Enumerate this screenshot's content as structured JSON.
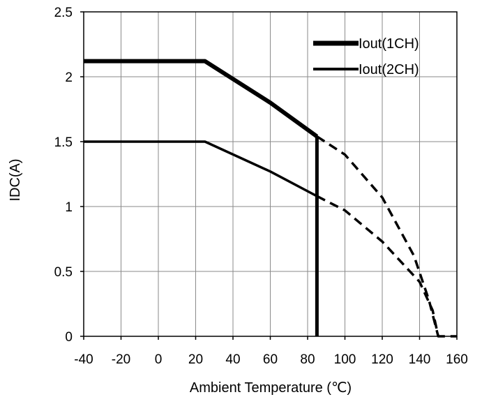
{
  "chart_data": {
    "type": "line",
    "title": "",
    "xlabel": "Ambient Temperature (℃)",
    "ylabel": "IDC(A)",
    "xlim": [
      -40,
      160
    ],
    "ylim": [
      0,
      2.5
    ],
    "x_ticks": [
      -40,
      -20,
      0,
      20,
      40,
      60,
      80,
      100,
      120,
      140,
      160
    ],
    "y_ticks": [
      0,
      0.5,
      1,
      1.5,
      2,
      2.5
    ],
    "x_tick_labels": [
      "-40",
      "-20",
      "0",
      "20",
      "40",
      "60",
      "80",
      "100",
      "120",
      "140",
      "160"
    ],
    "y_tick_labels": [
      "0",
      "0.5",
      "1",
      "1.5",
      "2",
      "2.5"
    ],
    "grid": true,
    "legend_position": "top-right",
    "series": [
      {
        "name": "Iout(1CH)",
        "line_style": "thick",
        "color": "#000000",
        "x": [
          -40,
          25,
          60,
          85
        ],
        "y": [
          2.12,
          2.12,
          1.8,
          1.54
        ]
      },
      {
        "name": "Iout(2CH)",
        "line_style": "medium",
        "color": "#000000",
        "x": [
          -40,
          25,
          60,
          85
        ],
        "y": [
          1.5,
          1.5,
          1.27,
          1.08
        ]
      }
    ],
    "extrapolated_segments": [
      {
        "series": "Iout(1CH)",
        "line_style": "dashed",
        "x": [
          85,
          100,
          120,
          137,
          145,
          150
        ],
        "y": [
          1.54,
          1.4,
          1.07,
          0.62,
          0.28,
          0
        ]
      },
      {
        "series": "Iout(2CH)",
        "line_style": "dashed",
        "x": [
          85,
          100,
          120,
          140,
          147,
          150,
          160
        ],
        "y": [
          1.08,
          0.97,
          0.73,
          0.42,
          0.2,
          0,
          0
        ]
      }
    ],
    "reference_lines": [
      {
        "orientation": "vertical",
        "x": 85,
        "y_from": 0,
        "y_to": 1.54,
        "color": "#000000"
      }
    ]
  }
}
